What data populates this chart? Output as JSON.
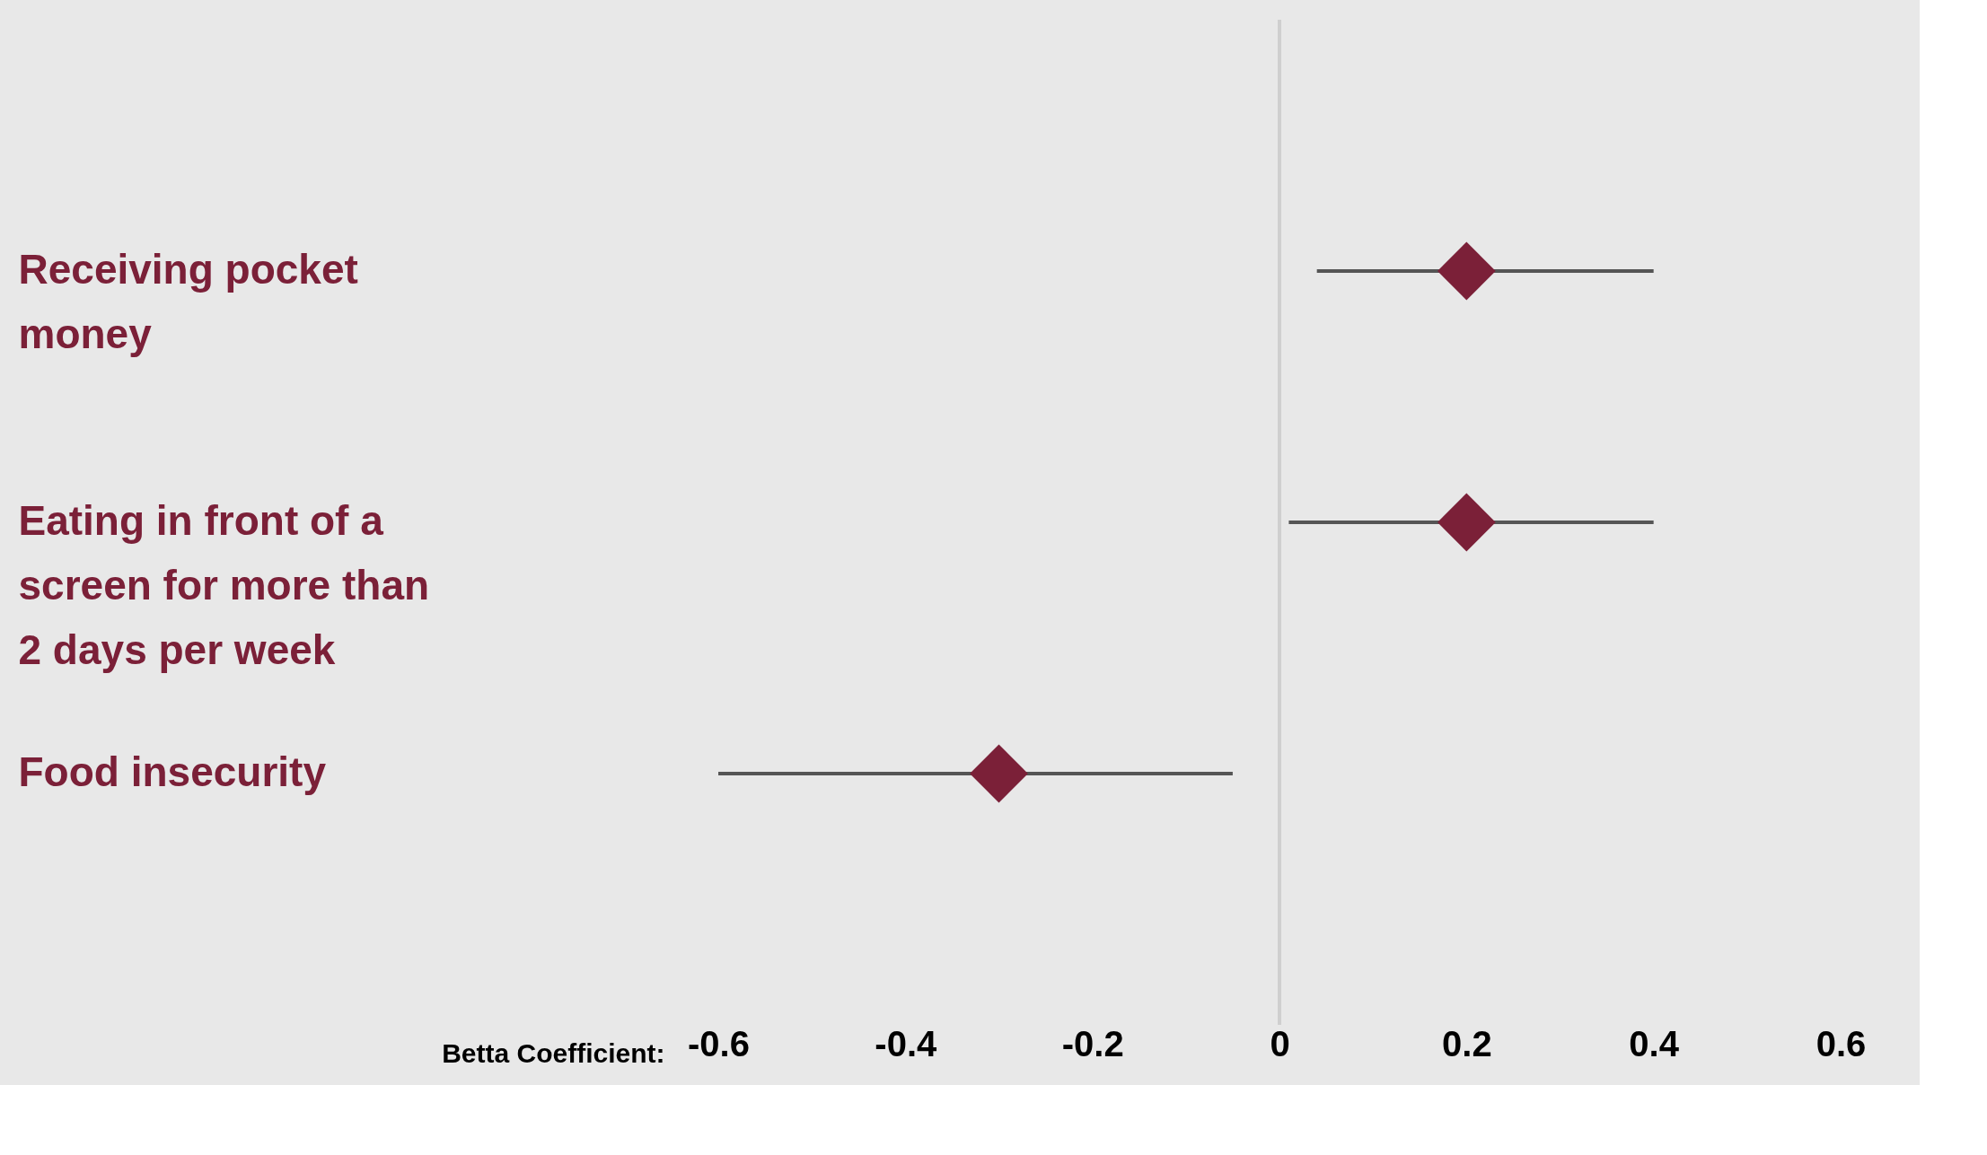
{
  "chart_data": {
    "type": "scatter",
    "orientation": "horizontal",
    "xlabel": "Betta Coefficient:",
    "categories": [
      "Receiving pocket money",
      "Eating in front of a screen for more than 2 days per week",
      "Food insecurity"
    ],
    "series": [
      {
        "color": "#7b2038",
        "values": [
          0.2,
          0.2,
          -0.3
        ],
        "errors": [
          [
            0.04,
            0.4
          ],
          [
            0.01,
            0.4
          ],
          [
            -0.6,
            -0.05
          ]
        ]
      }
    ],
    "xlim": [
      -0.6,
      0.6
    ],
    "xticks": [
      -0.6,
      -0.4,
      -0.2,
      0,
      0.2,
      0.4,
      0.6
    ],
    "ref_lines": [
      {
        "axis": "x",
        "value": 0,
        "color": "#cfcfcf"
      }
    ],
    "marker": "diamond",
    "grid": false,
    "legend": false
  }
}
